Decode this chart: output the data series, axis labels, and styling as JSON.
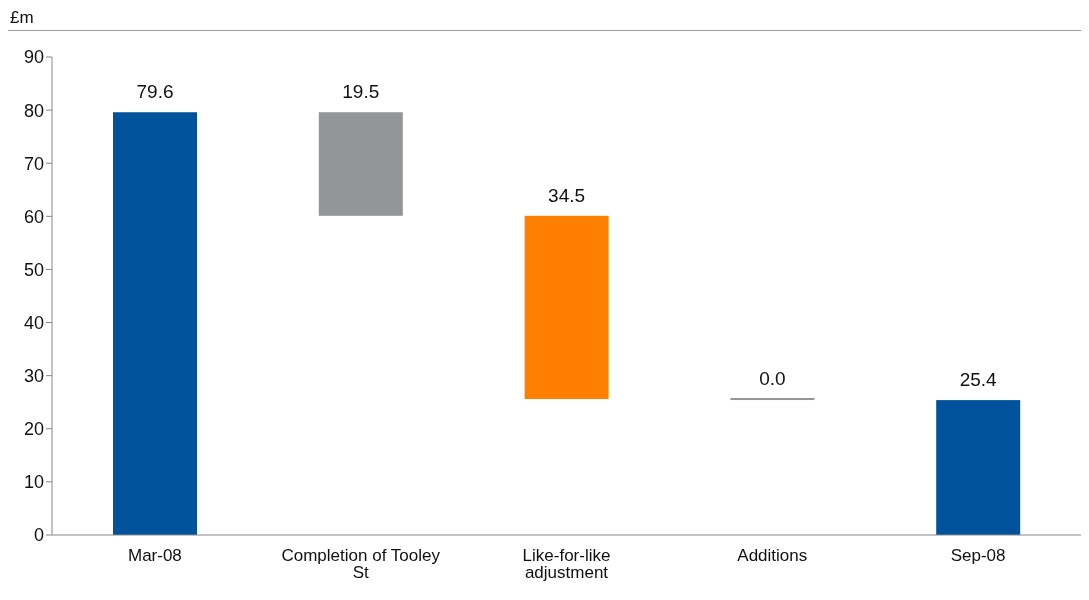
{
  "chart_data": {
    "type": "bar",
    "ylabel": "£m",
    "categories": [
      "Mar-08",
      "Completion of Tooley St",
      "Like-for-like adjustment",
      "Additions",
      "Sep-08"
    ],
    "values": [
      79.6,
      -19.5,
      -34.5,
      0,
      25.4
    ],
    "base": [
      0,
      79.6,
      60.1,
      25.6,
      0
    ],
    "colors": [
      "#00539b",
      "#939598",
      "#ff7f00",
      "#939598",
      "#00539b"
    ],
    "value_labels": [
      "79.6",
      "19.5",
      "34.5",
      "0.0",
      "25.4"
    ],
    "ylim": [
      0,
      90
    ],
    "yticks": [
      0,
      10,
      20,
      30,
      40,
      50,
      60,
      70,
      80,
      90
    ],
    "grid": false
  }
}
